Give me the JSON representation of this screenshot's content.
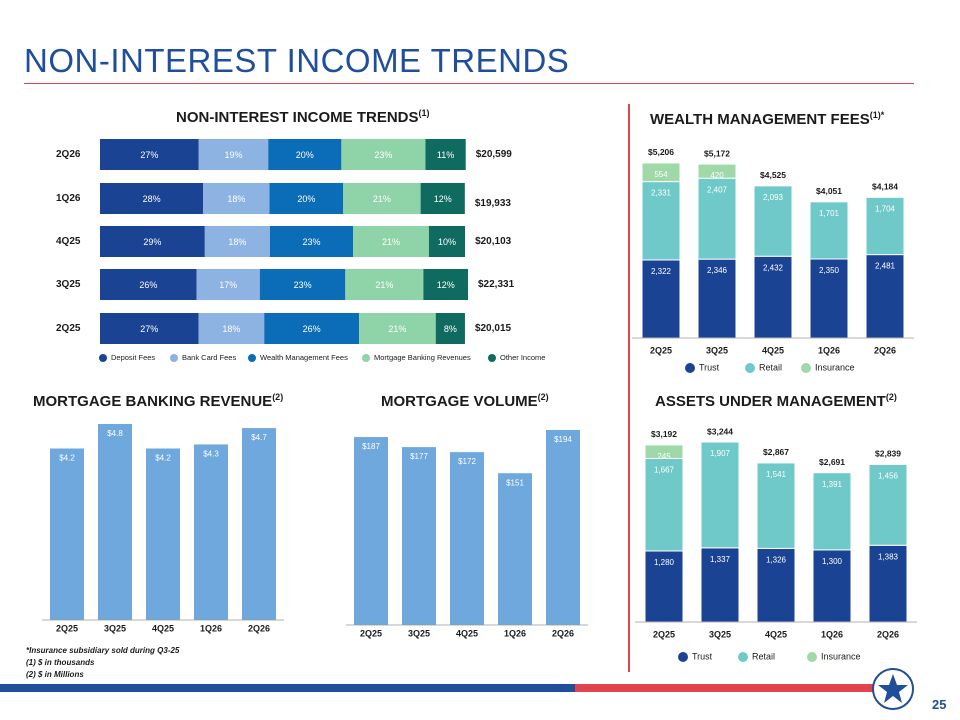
{
  "page": {
    "title": "NON-INTEREST INCOME TRENDS",
    "page_number": "25",
    "footnotes": [
      "*Insurance subsidiary sold during Q3-25",
      "(1) $ in thousands",
      "(2) $ in Millions"
    ]
  },
  "colors": {
    "brand_blue": "#1f4e9a",
    "brand_red": "#e2444d",
    "deposit_fees": "#1b4393",
    "bank_card_fees": "#8db3e2",
    "wealth_mgmt_fees": "#0b6cb8",
    "mortgage_banking_revenues": "#8fd3a8",
    "other_income": "#0f6b60",
    "trust": "#1b4393",
    "retail": "#6fc9c8",
    "insurance": "#9fd9a8",
    "single_bar": "#6fa8dc"
  },
  "chart_data": [
    {
      "id": "non_interest_income",
      "type": "bar",
      "orientation": "horizontal",
      "stacked": "percent",
      "title": "NON-INTEREST INCOME TRENDS",
      "title_sup": "(1)",
      "categories": [
        "2Q26",
        "1Q26",
        "4Q25",
        "3Q25",
        "2Q25"
      ],
      "series": [
        {
          "name": "Deposit Fees",
          "values": [
            27,
            28,
            29,
            26,
            27
          ],
          "labels": [
            "27%",
            "28%",
            "29%",
            "26%",
            "27%"
          ]
        },
        {
          "name": "Bank Card Fees",
          "values": [
            19,
            18,
            18,
            17,
            18
          ],
          "labels": [
            "19%",
            "18%",
            "18%",
            "17%",
            "18%"
          ]
        },
        {
          "name": "Wealth Management Fees",
          "values": [
            20,
            20,
            23,
            23,
            26
          ],
          "labels": [
            "20%",
            "20%",
            "23%",
            "23%",
            "26%"
          ]
        },
        {
          "name": "Mortgage Banking Revenues",
          "values": [
            23,
            21,
            21,
            21,
            21
          ],
          "labels": [
            "23%",
            "21%",
            "21%",
            "21%",
            "21%"
          ]
        },
        {
          "name": "Other Income",
          "values": [
            11,
            12,
            10,
            12,
            8
          ],
          "labels": [
            "11%",
            "12%",
            "10%",
            "12%",
            "8%"
          ]
        }
      ],
      "totals": [
        20599,
        19933,
        20103,
        22331,
        20015
      ],
      "total_labels": [
        "$20,599",
        "$19,933",
        "$20,103",
        "$22,331",
        "$20,015"
      ],
      "legend": "bottom"
    },
    {
      "id": "wealth_management_fees",
      "type": "bar",
      "stacked": true,
      "title": "WEALTH MANAGEMENT FEES",
      "title_sup": "(1)*",
      "categories": [
        "2Q25",
        "3Q25",
        "4Q25",
        "1Q26",
        "2Q26"
      ],
      "series": [
        {
          "name": "Trust",
          "values": [
            2322,
            2346,
            2432,
            2350,
            2481
          ],
          "labels": [
            "2,322",
            "2,346",
            "2,432",
            "2,350",
            "2,481"
          ]
        },
        {
          "name": "Retail",
          "values": [
            2331,
            2407,
            2093,
            1701,
            1704
          ],
          "labels": [
            "2,331",
            "2,407",
            "2,093",
            "1,701",
            "1,704"
          ]
        },
        {
          "name": "Insurance",
          "values": [
            554,
            420,
            0,
            0,
            0
          ],
          "labels": [
            "554",
            "420",
            "",
            "",
            ""
          ]
        }
      ],
      "total_labels": [
        "$5,206",
        "$5,172",
        "$4,525",
        "$4,051",
        "$4,184"
      ],
      "ylim": [
        0,
        5206
      ],
      "legend": "bottom"
    },
    {
      "id": "mortgage_banking_revenue",
      "type": "bar",
      "title": "MORTGAGE BANKING REVENUE",
      "title_sup": "(2)",
      "categories": [
        "2Q25",
        "3Q25",
        "4Q25",
        "1Q26",
        "2Q26"
      ],
      "values": [
        4.2,
        4.8,
        4.2,
        4.3,
        4.7
      ],
      "labels": [
        "$4.2",
        "$4.8",
        "$4.2",
        "$4.3",
        "$4.7"
      ],
      "ylim": [
        0,
        4.8
      ]
    },
    {
      "id": "mortgage_volume",
      "type": "bar",
      "title": "MORTGAGE VOLUME",
      "title_sup": "(2)",
      "categories": [
        "2Q25",
        "3Q25",
        "4Q25",
        "1Q26",
        "2Q26"
      ],
      "values": [
        187,
        177,
        172,
        151,
        194
      ],
      "labels": [
        "$187",
        "$177",
        "$172",
        "$151",
        "$194"
      ],
      "ylim": [
        0,
        194
      ]
    },
    {
      "id": "assets_under_management",
      "type": "bar",
      "stacked": true,
      "title": "ASSETS UNDER MANAGEMENT",
      "title_sup": "(2)",
      "categories": [
        "2Q25",
        "3Q25",
        "4Q25",
        "1Q26",
        "2Q26"
      ],
      "series": [
        {
          "name": "Trust",
          "values": [
            1280,
            1337,
            1326,
            1300,
            1383
          ],
          "labels": [
            "1,280",
            "1,337",
            "1,326",
            "1,300",
            "1,383"
          ]
        },
        {
          "name": "Retail",
          "values": [
            1667,
            1907,
            1541,
            1391,
            1456
          ],
          "labels": [
            "1,667",
            "1,907",
            "1,541",
            "1,391",
            "1,456"
          ]
        },
        {
          "name": "Insurance",
          "values": [
            245,
            0,
            0,
            0,
            0
          ],
          "labels": [
            "245",
            "",
            "",
            "",
            ""
          ]
        }
      ],
      "total_labels": [
        "$3,192",
        "$3,244",
        "$2,867",
        "$2,691",
        "$2,839"
      ],
      "ylim": [
        0,
        3244
      ],
      "legend": "bottom"
    }
  ]
}
